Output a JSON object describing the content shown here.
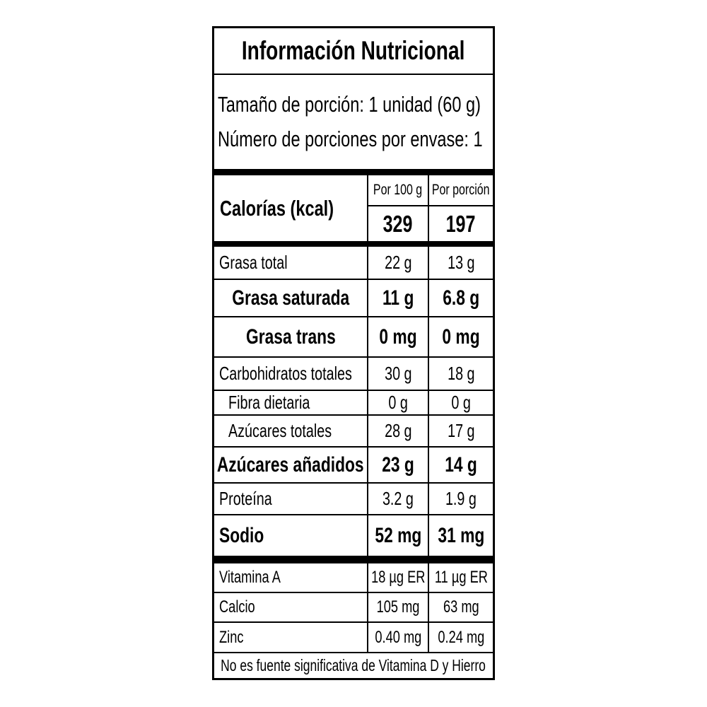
{
  "label": {
    "title": "Información Nutricional",
    "serving": {
      "size_line": "Tamaño de porción: 1 unidad (60 g)",
      "count_line": "Número de porciones por envase: 1"
    },
    "columns": {
      "per_100g_header": "Por 100 g",
      "per_portion_header": "Por porción"
    },
    "calories": {
      "name": "Calorías (kcal)",
      "per_100g": "329",
      "per_portion": "197"
    },
    "nutrients": [
      {
        "name": "Grasa total",
        "per_100g": "22 g",
        "per_portion": "13 g",
        "emphasis": false
      },
      {
        "name": "Grasa saturada",
        "per_100g": "11 g",
        "per_portion": "6.8 g",
        "emphasis": true
      },
      {
        "name": "Grasa trans",
        "per_100g": "0 mg",
        "per_portion": "0 mg",
        "emphasis": true
      },
      {
        "name": "Carbohidratos totales",
        "per_100g": "30 g",
        "per_portion": "18 g",
        "emphasis": false
      },
      {
        "name": "Fibra dietaria",
        "per_100g": "0 g",
        "per_portion": "0 g",
        "emphasis": false
      },
      {
        "name": "Azúcares totales",
        "per_100g": "28 g",
        "per_portion": "17 g",
        "emphasis": false
      },
      {
        "name": "Azúcares añadidos",
        "per_100g": "23 g",
        "per_portion": "14 g",
        "emphasis": true
      },
      {
        "name": "Proteína",
        "per_100g": "3.2 g",
        "per_portion": "1.9 g",
        "emphasis": false
      },
      {
        "name": "Sodio",
        "per_100g": "52 mg",
        "per_portion": "31 mg",
        "emphasis": true
      }
    ],
    "micronutrients": [
      {
        "name": "Vitamina A",
        "per_100g": "18 µg ER",
        "per_portion": "11 µg ER"
      },
      {
        "name": "Calcio",
        "per_100g": "105 mg",
        "per_portion": "63 mg"
      },
      {
        "name": "Zinc",
        "per_100g": "0.40 mg",
        "per_portion": "0.24 mg"
      }
    ],
    "footnote": "No es fuente significativa de Vitamina D y Hierro",
    "colors": {
      "border": "#000000",
      "background": "#ffffff",
      "text": "#000000"
    }
  }
}
